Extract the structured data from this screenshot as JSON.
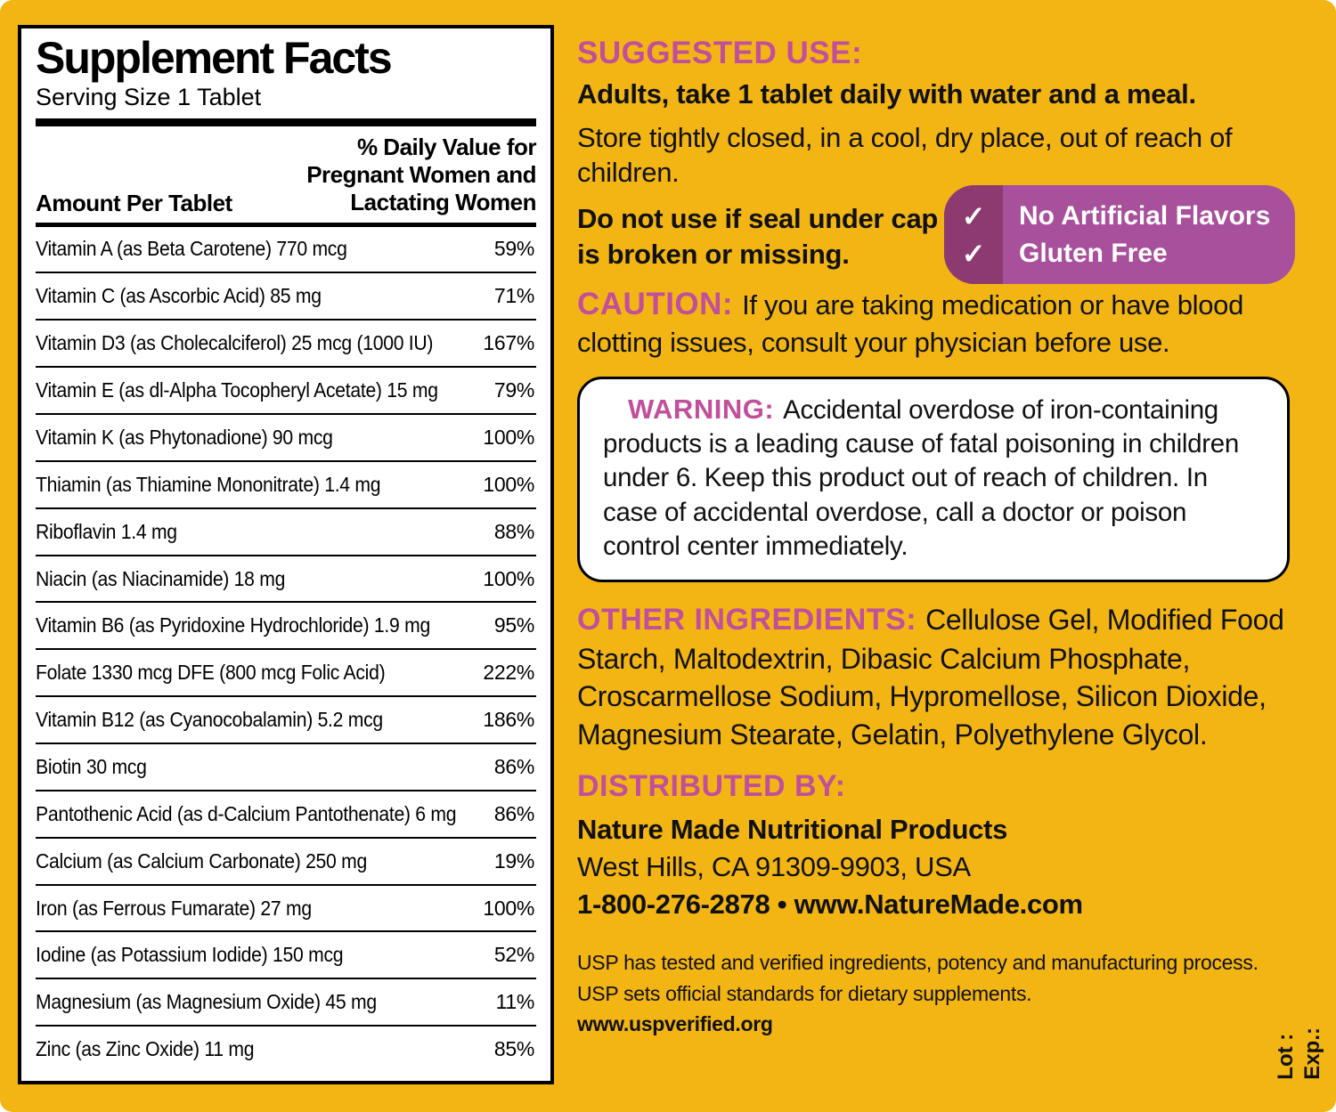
{
  "colors": {
    "background": "#F3B514",
    "accent_magenta": "#C14F9B",
    "badge_purple": "#A8509C",
    "badge_dark": "#8C3A6F"
  },
  "panel": {
    "title": "Supplement Facts",
    "serving": "Serving Size 1 Tablet",
    "col_left": "Amount Per Tablet",
    "col_right_lines": [
      "% Daily Value for",
      "Pregnant Women and",
      "Lactating Women"
    ],
    "rows": [
      {
        "label": "Vitamin A (as Beta Carotene)  770 mcg",
        "dv": "59%"
      },
      {
        "label": "Vitamin C (as Ascorbic Acid)  85 mg",
        "dv": "71%"
      },
      {
        "label": "Vitamin D3 (as Cholecalciferol)  25 mcg (1000 IU)",
        "dv": "167%"
      },
      {
        "label": "Vitamin E (as dl-Alpha Tocopheryl Acetate)  15 mg",
        "dv": "79%"
      },
      {
        "label": "Vitamin K (as Phytonadione)  90 mcg",
        "dv": "100%"
      },
      {
        "label": "Thiamin (as Thiamine Mononitrate)  1.4 mg",
        "dv": "100%"
      },
      {
        "label": "Riboflavin  1.4 mg",
        "dv": "88%"
      },
      {
        "label": "Niacin (as Niacinamide)  18 mg",
        "dv": "100%"
      },
      {
        "label": "Vitamin B6 (as Pyridoxine Hydrochloride)  1.9 mg",
        "dv": "95%"
      },
      {
        "label": "Folate  1330 mcg DFE (800 mcg Folic Acid)",
        "dv": "222%"
      },
      {
        "label": "Vitamin B12 (as Cyanocobalamin)  5.2 mcg",
        "dv": "186%"
      },
      {
        "label": "Biotin  30 mcg",
        "dv": "86%"
      },
      {
        "label": "Pantothenic Acid (as d-Calcium Pantothenate)  6 mg",
        "dv": "86%"
      },
      {
        "label": "Calcium (as Calcium Carbonate)  250 mg",
        "dv": "19%"
      },
      {
        "label": "Iron (as Ferrous Fumarate)  27 mg",
        "dv": "100%"
      },
      {
        "label": "Iodine (as Potassium Iodide)  150 mcg",
        "dv": "52%"
      },
      {
        "label": "Magnesium (as Magnesium Oxide)  45 mg",
        "dv": "11%"
      },
      {
        "label": "Zinc (as Zinc Oxide)  11 mg",
        "dv": "85%"
      }
    ]
  },
  "right": {
    "suggested_use": {
      "heading": "SUGGESTED USE:",
      "line1": "Adults, take 1 tablet daily with water and a meal.",
      "line2": "Store tightly closed, in a cool, dry place, out of reach of children.",
      "line3": "Do not use if seal under cap is broken or missing."
    },
    "badge": {
      "check": "✓",
      "items": [
        "No Artificial Flavors",
        "Gluten Free"
      ]
    },
    "caution": {
      "heading": "CAUTION:",
      "text": "If you are taking medication or have blood clotting issues, consult your physician before use."
    },
    "warning": {
      "heading": "WARNING:",
      "text": "Accidental overdose of iron-containing products is a leading cause of fatal poisoning in children under 6. Keep this product out of reach of children. In case of accidental overdose, call a doctor or poison control center immediately."
    },
    "other_ingredients": {
      "heading": "OTHER INGREDIENTS:",
      "text": "Cellulose Gel, Modified Food Starch, Maltodextrin, Dibasic Calcium Phosphate, Croscarmellose Sodium, Hypromellose, Silicon Dioxide, Magnesium Stearate, Gelatin, Polyethylene Glycol."
    },
    "distributed": {
      "heading": "DISTRIBUTED BY:",
      "line1": "Nature Made Nutritional Products",
      "line2": "West Hills, CA 91309-9903, USA",
      "line3": "1-800-276-2878 • www.NatureMade.com"
    },
    "usp": {
      "line1": "USP has tested and verified ingredients, potency and manufacturing process.",
      "line2": "USP sets official standards for dietary supplements.",
      "line3": "www.uspverified.org"
    },
    "side": {
      "lot": "Lot :",
      "exp": "Exp.:"
    }
  }
}
